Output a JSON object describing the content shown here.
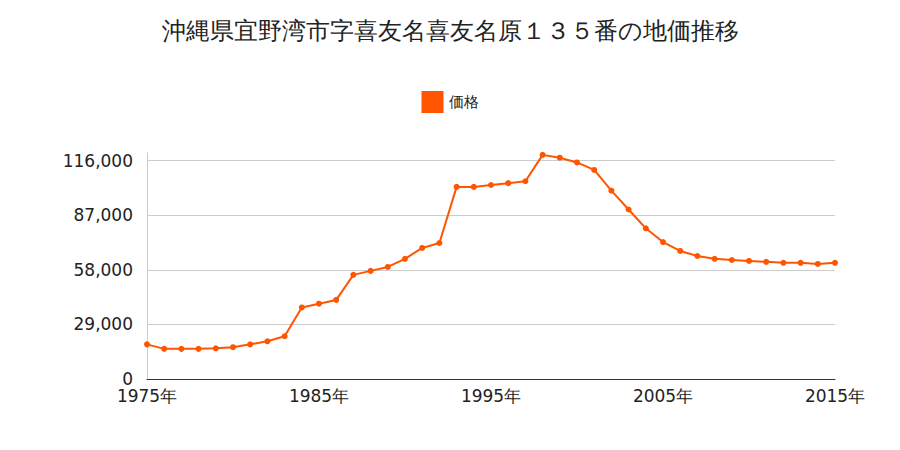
{
  "chart_data": {
    "type": "line",
    "title": "沖縄県宜野湾市字喜友名喜友名原１３５番の地価推移",
    "x": [
      1975,
      1976,
      1977,
      1978,
      1979,
      1980,
      1981,
      1982,
      1983,
      1984,
      1985,
      1986,
      1987,
      1988,
      1989,
      1990,
      1991,
      1992,
      1993,
      1994,
      1995,
      1996,
      1997,
      1998,
      1999,
      2000,
      2001,
      2002,
      2003,
      2004,
      2005,
      2006,
      2007,
      2008,
      2009,
      2010,
      2011,
      2012,
      2013,
      2014,
      2015
    ],
    "series": [
      {
        "name": "価格",
        "color": "#ff5500",
        "marker": "circle",
        "values": [
          18400,
          16000,
          16000,
          16000,
          16300,
          16900,
          18400,
          20000,
          22700,
          38000,
          40000,
          42000,
          55300,
          57400,
          59500,
          63800,
          69600,
          72200,
          102000,
          102000,
          103000,
          104000,
          105000,
          119000,
          117500,
          115000,
          111000,
          100000,
          90000,
          80000,
          72700,
          68000,
          65300,
          63800,
          63200,
          62700,
          62200,
          61700,
          61700,
          61100,
          61700
        ]
      }
    ],
    "xlim": [
      1975,
      2015
    ],
    "xticks": [
      {
        "value": 1975,
        "label": "1975年"
      },
      {
        "value": 1985,
        "label": "1985年"
      },
      {
        "value": 1995,
        "label": "1995年"
      },
      {
        "value": 2005,
        "label": "2005年"
      },
      {
        "value": 2015,
        "label": "2015年"
      }
    ],
    "ylim": [
      0,
      120000
    ],
    "yticks": [
      0,
      {
        "value": 29000,
        "label": "29,000"
      },
      {
        "value": 58000,
        "label": "58,000"
      },
      {
        "value": 87000,
        "label": "87,000"
      },
      {
        "value": 116000,
        "label": "116,000"
      }
    ],
    "grid": true,
    "legend": "top"
  }
}
